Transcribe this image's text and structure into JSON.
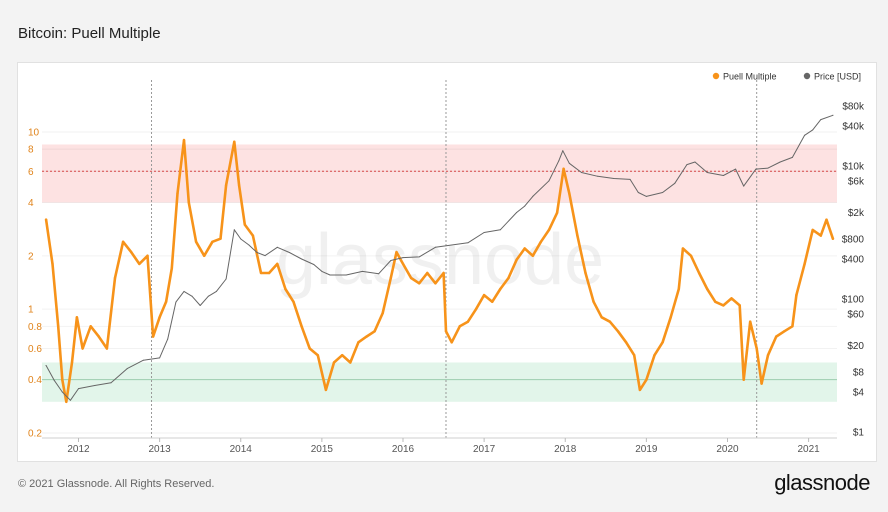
{
  "title": "Bitcoin: Puell Multiple",
  "footer": "© 2021 Glassnode. All Rights Reserved.",
  "brand": "glassnode",
  "watermark": "glassnode",
  "colors": {
    "puell": "#f7931a",
    "price": "#666666",
    "red_band": "#fde2e2",
    "green_band": "#e2f5ea",
    "left_axis": "#e0831a"
  },
  "chart_data": {
    "type": "line",
    "title": "Bitcoin: Puell Multiple",
    "legend": [
      "Puell Multiple",
      "Price [USD]"
    ],
    "legend_position": "top-right",
    "x_ticks": [
      "2012",
      "2013",
      "2014",
      "2015",
      "2016",
      "2017",
      "2018",
      "2019",
      "2020",
      "2021"
    ],
    "y_left": {
      "scale": "log",
      "range": [
        0.2,
        10
      ],
      "ticks": [
        {
          "v": 10,
          "label": "10"
        },
        {
          "v": 8,
          "label": "8"
        },
        {
          "v": 6,
          "label": "6"
        },
        {
          "v": 4,
          "label": "4"
        },
        {
          "v": 2,
          "label": "2"
        },
        {
          "v": 1,
          "label": "1"
        },
        {
          "v": 0.8,
          "label": "0.8"
        },
        {
          "v": 0.6,
          "label": "0.6"
        },
        {
          "v": 0.4,
          "label": "0.4"
        },
        {
          "v": 0.2,
          "label": "0.2"
        }
      ]
    },
    "y_right": {
      "scale": "log",
      "range": [
        1,
        80000
      ],
      "ticks": [
        {
          "v": 80000,
          "label": "$80k"
        },
        {
          "v": 40000,
          "label": "$40k"
        },
        {
          "v": 10000,
          "label": "$10k"
        },
        {
          "v": 6000,
          "label": "$6k"
        },
        {
          "v": 2000,
          "label": "$2k"
        },
        {
          "v": 800,
          "label": "$800"
        },
        {
          "v": 400,
          "label": "$400"
        },
        {
          "v": 100,
          "label": "$100"
        },
        {
          "v": 60,
          "label": "$60"
        },
        {
          "v": 20,
          "label": "$20"
        },
        {
          "v": 8,
          "label": "$8"
        },
        {
          "v": 4,
          "label": "$4"
        },
        {
          "v": 1,
          "label": "$1"
        }
      ]
    },
    "bands": {
      "red": [
        4,
        8.5
      ],
      "red_line": 6,
      "green": [
        0.3,
        0.5
      ],
      "green_line": 0.4
    },
    "halving_lines": [
      2012.9,
      2016.53,
      2020.36
    ],
    "series": [
      {
        "name": "Puell Multiple",
        "axis": "left",
        "points": [
          [
            2011.6,
            3.2
          ],
          [
            2011.68,
            1.8
          ],
          [
            2011.75,
            0.8
          ],
          [
            2011.8,
            0.4
          ],
          [
            2011.85,
            0.3
          ],
          [
            2011.92,
            0.5
          ],
          [
            2011.98,
            0.9
          ],
          [
            2012.05,
            0.6
          ],
          [
            2012.15,
            0.8
          ],
          [
            2012.25,
            0.7
          ],
          [
            2012.35,
            0.6
          ],
          [
            2012.45,
            1.5
          ],
          [
            2012.55,
            2.4
          ],
          [
            2012.65,
            2.1
          ],
          [
            2012.75,
            1.8
          ],
          [
            2012.85,
            2.0
          ],
          [
            2012.92,
            0.7
          ],
          [
            2013.0,
            0.9
          ],
          [
            2013.08,
            1.1
          ],
          [
            2013.15,
            1.7
          ],
          [
            2013.22,
            4.5
          ],
          [
            2013.3,
            9.0
          ],
          [
            2013.36,
            4.0
          ],
          [
            2013.45,
            2.4
          ],
          [
            2013.55,
            2.0
          ],
          [
            2013.65,
            2.4
          ],
          [
            2013.75,
            2.5
          ],
          [
            2013.82,
            5.0
          ],
          [
            2013.92,
            8.8
          ],
          [
            2013.98,
            5.0
          ],
          [
            2014.05,
            3.0
          ],
          [
            2014.15,
            2.6
          ],
          [
            2014.25,
            1.6
          ],
          [
            2014.35,
            1.6
          ],
          [
            2014.45,
            1.8
          ],
          [
            2014.55,
            1.3
          ],
          [
            2014.65,
            1.1
          ],
          [
            2014.75,
            0.8
          ],
          [
            2014.85,
            0.6
          ],
          [
            2014.95,
            0.55
          ],
          [
            2015.05,
            0.35
          ],
          [
            2015.15,
            0.5
          ],
          [
            2015.25,
            0.55
          ],
          [
            2015.35,
            0.5
          ],
          [
            2015.45,
            0.65
          ],
          [
            2015.55,
            0.7
          ],
          [
            2015.65,
            0.75
          ],
          [
            2015.75,
            0.95
          ],
          [
            2015.85,
            1.5
          ],
          [
            2015.92,
            2.1
          ],
          [
            2016.0,
            1.8
          ],
          [
            2016.1,
            1.5
          ],
          [
            2016.2,
            1.4
          ],
          [
            2016.3,
            1.6
          ],
          [
            2016.4,
            1.4
          ],
          [
            2016.5,
            1.6
          ],
          [
            2016.53,
            0.75
          ],
          [
            2016.6,
            0.65
          ],
          [
            2016.7,
            0.8
          ],
          [
            2016.8,
            0.85
          ],
          [
            2016.9,
            1.0
          ],
          [
            2017.0,
            1.2
          ],
          [
            2017.1,
            1.1
          ],
          [
            2017.2,
            1.3
          ],
          [
            2017.3,
            1.5
          ],
          [
            2017.4,
            1.9
          ],
          [
            2017.5,
            2.2
          ],
          [
            2017.6,
            2.0
          ],
          [
            2017.7,
            2.4
          ],
          [
            2017.8,
            2.8
          ],
          [
            2017.9,
            3.5
          ],
          [
            2017.98,
            6.2
          ],
          [
            2018.05,
            4.5
          ],
          [
            2018.15,
            2.6
          ],
          [
            2018.25,
            1.6
          ],
          [
            2018.35,
            1.1
          ],
          [
            2018.45,
            0.9
          ],
          [
            2018.55,
            0.85
          ],
          [
            2018.65,
            0.75
          ],
          [
            2018.75,
            0.65
          ],
          [
            2018.85,
            0.55
          ],
          [
            2018.92,
            0.35
          ],
          [
            2019.0,
            0.4
          ],
          [
            2019.1,
            0.55
          ],
          [
            2019.2,
            0.65
          ],
          [
            2019.3,
            0.9
          ],
          [
            2019.4,
            1.3
          ],
          [
            2019.45,
            2.2
          ],
          [
            2019.55,
            2.0
          ],
          [
            2019.65,
            1.6
          ],
          [
            2019.75,
            1.3
          ],
          [
            2019.85,
            1.1
          ],
          [
            2019.95,
            1.05
          ],
          [
            2020.05,
            1.15
          ],
          [
            2020.15,
            1.05
          ],
          [
            2020.2,
            0.4
          ],
          [
            2020.28,
            0.85
          ],
          [
            2020.36,
            0.6
          ],
          [
            2020.42,
            0.38
          ],
          [
            2020.5,
            0.55
          ],
          [
            2020.6,
            0.7
          ],
          [
            2020.7,
            0.75
          ],
          [
            2020.8,
            0.8
          ],
          [
            2020.85,
            1.2
          ],
          [
            2020.95,
            1.8
          ],
          [
            2021.05,
            2.8
          ],
          [
            2021.15,
            2.6
          ],
          [
            2021.22,
            3.2
          ],
          [
            2021.3,
            2.5
          ]
        ]
      },
      {
        "name": "Price [USD]",
        "axis": "right",
        "points": [
          [
            2011.6,
            10
          ],
          [
            2011.7,
            6
          ],
          [
            2011.8,
            4
          ],
          [
            2011.9,
            3
          ],
          [
            2012.0,
            4.5
          ],
          [
            2012.2,
            5
          ],
          [
            2012.4,
            5.5
          ],
          [
            2012.6,
            9
          ],
          [
            2012.8,
            12
          ],
          [
            2013.0,
            13
          ],
          [
            2013.1,
            25
          ],
          [
            2013.2,
            90
          ],
          [
            2013.3,
            130
          ],
          [
            2013.4,
            110
          ],
          [
            2013.5,
            80
          ],
          [
            2013.6,
            110
          ],
          [
            2013.7,
            130
          ],
          [
            2013.82,
            200
          ],
          [
            2013.92,
            1100
          ],
          [
            2014.0,
            800
          ],
          [
            2014.1,
            650
          ],
          [
            2014.2,
            500
          ],
          [
            2014.3,
            450
          ],
          [
            2014.45,
            600
          ],
          [
            2014.6,
            500
          ],
          [
            2014.75,
            400
          ],
          [
            2014.9,
            330
          ],
          [
            2015.0,
            260
          ],
          [
            2015.1,
            230
          ],
          [
            2015.3,
            230
          ],
          [
            2015.5,
            260
          ],
          [
            2015.7,
            240
          ],
          [
            2015.85,
            380
          ],
          [
            2016.0,
            420
          ],
          [
            2016.2,
            430
          ],
          [
            2016.4,
            600
          ],
          [
            2016.6,
            650
          ],
          [
            2016.8,
            700
          ],
          [
            2017.0,
            1000
          ],
          [
            2017.2,
            1100
          ],
          [
            2017.4,
            2000
          ],
          [
            2017.5,
            2500
          ],
          [
            2017.6,
            3500
          ],
          [
            2017.8,
            6000
          ],
          [
            2017.92,
            12000
          ],
          [
            2017.97,
            17000
          ],
          [
            2018.05,
            11000
          ],
          [
            2018.2,
            8000
          ],
          [
            2018.4,
            7000
          ],
          [
            2018.6,
            6500
          ],
          [
            2018.8,
            6300
          ],
          [
            2018.9,
            4000
          ],
          [
            2019.0,
            3500
          ],
          [
            2019.2,
            4000
          ],
          [
            2019.35,
            5500
          ],
          [
            2019.5,
            10500
          ],
          [
            2019.6,
            11500
          ],
          [
            2019.75,
            8000
          ],
          [
            2019.95,
            7200
          ],
          [
            2020.1,
            9000
          ],
          [
            2020.2,
            5000
          ],
          [
            2020.35,
            9000
          ],
          [
            2020.5,
            9300
          ],
          [
            2020.65,
            11500
          ],
          [
            2020.8,
            13500
          ],
          [
            2020.95,
            29000
          ],
          [
            2021.05,
            35000
          ],
          [
            2021.15,
            50000
          ],
          [
            2021.3,
            58000
          ]
        ]
      }
    ]
  }
}
